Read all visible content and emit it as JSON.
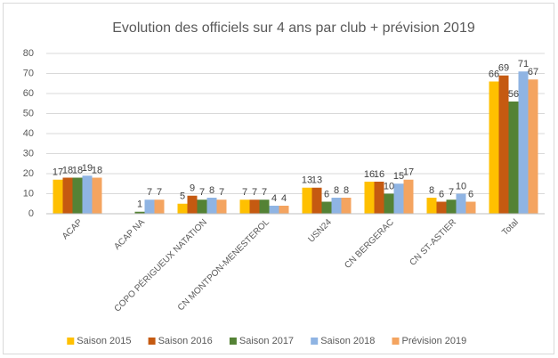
{
  "chart_data": {
    "type": "bar",
    "title": "Evolution des officiels sur 4 ans par club + prévision 2019",
    "categories": [
      "ACAP",
      "ACAP NA",
      "COPO PÉRIGUEUX NATATION",
      "CN MONTPON-MENESTEROL",
      "USN24",
      "CN BERGERAC",
      "CN ST-ASTIER",
      "Total"
    ],
    "series": [
      {
        "name": "Saison 2015",
        "color": "#ffc000",
        "values": [
          17,
          null,
          5,
          7,
          13,
          16,
          8,
          66
        ]
      },
      {
        "name": "Saison 2016",
        "color": "#c55a11",
        "values": [
          18,
          null,
          9,
          7,
          13,
          16,
          6,
          69
        ]
      },
      {
        "name": "Saison 2017",
        "color": "#548235",
        "values": [
          18,
          1,
          7,
          7,
          6,
          10,
          7,
          56
        ]
      },
      {
        "name": "Saison 2018",
        "color": "#8fb4e3",
        "values": [
          19,
          7,
          8,
          4,
          8,
          15,
          10,
          71
        ]
      },
      {
        "name": "Prévision 2019",
        "color": "#f4a460",
        "values": [
          18,
          7,
          7,
          4,
          8,
          17,
          6,
          67
        ]
      }
    ],
    "ylim": [
      0,
      80
    ],
    "yticks": [
      0,
      10,
      20,
      30,
      40,
      50,
      60,
      70,
      80
    ],
    "grid": true,
    "legend": "bottom"
  }
}
